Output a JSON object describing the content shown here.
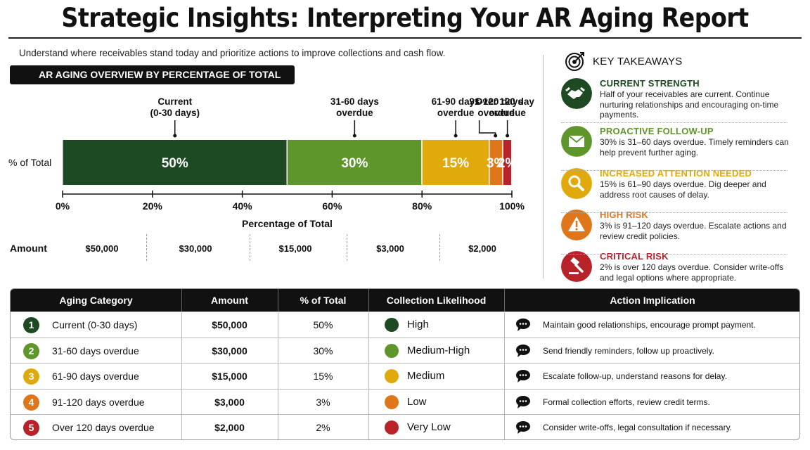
{
  "title": "Strategic Insights: Interpreting Your AR Aging Report",
  "subtitle": "Understand where receivables stand today and prioritize actions to improve collections and cash flow.",
  "chart_header": "AR AGING OVERVIEW BY PERCENTAGE OF TOTAL",
  "chart_data": {
    "type": "bar",
    "orientation": "horizontal-stacked",
    "title": "AR AGING OVERVIEW BY PERCENTAGE OF TOTAL",
    "ylabel": "% of Total",
    "xlabel": "Percentage of Total",
    "xlim": [
      0,
      100
    ],
    "x_ticks": [
      "0%",
      "20%",
      "40%",
      "60%",
      "80%",
      "100%"
    ],
    "categories": [
      "Current\n(0-30 days)",
      "31-60 days\noverdue",
      "61-90 days\noverdue",
      "91-120 days\noverdue",
      "Over 120 days\noverdue"
    ],
    "values": [
      50,
      30,
      15,
      3,
      2
    ],
    "value_labels": [
      "50%",
      "30%",
      "15%",
      "3%",
      "2%"
    ],
    "colors": [
      "#1d4a22",
      "#5e962c",
      "#e0aa0c",
      "#e0761a",
      "#b8232a"
    ],
    "amounts": [
      "$50,000",
      "$30,000",
      "$15,000",
      "$3,000",
      "$2,000"
    ],
    "amount_label": "Amount"
  },
  "takeaways": {
    "heading": "KEY TAKEAWAYS",
    "items": [
      {
        "title": "CURRENT STRENGTH",
        "body": "Half of your receivables are current. Continue nurturing relationships and encouraging on-time payments.",
        "color": "#1d4a22",
        "icon": "handshake-icon"
      },
      {
        "title": "PROACTIVE FOLLOW-UP",
        "body": "30% is 31–60 days overdue. Timely reminders can help prevent further aging.",
        "color": "#5e962c",
        "icon": "envelope-icon"
      },
      {
        "title": "INCREASED ATTENTION NEEDED",
        "body": "15% is 61–90 days overdue. Dig deeper and address root causes of delay.",
        "color": "#e0aa0c",
        "icon": "magnifier-icon"
      },
      {
        "title": "HIGH RISK",
        "body": "3% is 91–120 days overdue. Escalate actions and review credit policies.",
        "color": "#e0761a",
        "icon": "warning-icon"
      },
      {
        "title": "CRITICAL RISK",
        "body": "2% is over 120 days overdue. Consider write-offs and legal options where appropriate.",
        "color": "#b8232a",
        "icon": "gavel-icon"
      }
    ]
  },
  "table": {
    "headers": [
      "Aging Category",
      "Amount",
      "% of Total",
      "Collection Likelihood",
      "Action Implication"
    ],
    "rows": [
      {
        "num": "1",
        "category": "Current (0-30 days)",
        "amount": "$50,000",
        "pct": "50%",
        "likelihood": "High",
        "action": "Maintain good relationships, encourage prompt payment.",
        "color": "#1d4a22"
      },
      {
        "num": "2",
        "category": "31-60 days overdue",
        "amount": "$30,000",
        "pct": "30%",
        "likelihood": "Medium-High",
        "action": "Send friendly reminders, follow up proactively.",
        "color": "#5e962c"
      },
      {
        "num": "3",
        "category": "61-90 days overdue",
        "amount": "$15,000",
        "pct": "15%",
        "likelihood": "Medium",
        "action": "Escalate follow-up, understand reasons for delay.",
        "color": "#e0aa0c"
      },
      {
        "num": "4",
        "category": "91-120 days overdue",
        "amount": "$3,000",
        "pct": "3%",
        "likelihood": "Low",
        "action": "Formal collection efforts, review credit terms.",
        "color": "#e0761a"
      },
      {
        "num": "5",
        "category": "Over 120 days overdue",
        "amount": "$2,000",
        "pct": "2%",
        "likelihood": "Very Low",
        "action": "Consider write-offs, legal consultation if necessary.",
        "color": "#b8232a"
      }
    ]
  }
}
